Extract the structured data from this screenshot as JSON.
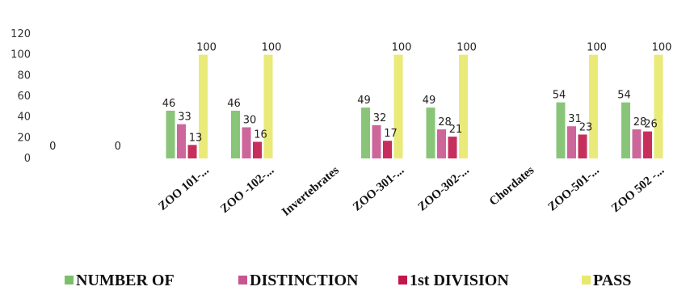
{
  "chart_data": {
    "type": "bar",
    "categories": [
      "",
      "",
      "ZOO 101-...",
      "ZOO -102-...",
      "Invertebrates",
      "ZOO-301-...",
      "ZOO-302-...",
      "Chordates",
      "ZOO-501-...",
      "ZOO 502 -..."
    ],
    "series": [
      {
        "name": "NUMBER OF",
        "color": "#7cbf6a",
        "values": [
          0,
          0,
          46,
          46,
          null,
          49,
          49,
          null,
          54,
          54
        ]
      },
      {
        "name": "DISTINCTION",
        "color": "#c8558f",
        "values": [
          null,
          null,
          33,
          30,
          null,
          32,
          28,
          null,
          31,
          28
        ]
      },
      {
        "name": "1st DIVISION",
        "color": "#c0184a",
        "values": [
          null,
          null,
          13,
          16,
          null,
          17,
          21,
          null,
          23,
          26
        ]
      },
      {
        "name": "PASS",
        "color": "#e8e86a",
        "values": [
          null,
          null,
          100,
          100,
          null,
          100,
          100,
          null,
          100,
          100
        ]
      }
    ],
    "y_ticks": [
      "0",
      "20",
      "40",
      "60",
      "80",
      "100",
      "120"
    ],
    "ylim": [
      0,
      120
    ],
    "grid": false,
    "legend_position": "bottom"
  }
}
